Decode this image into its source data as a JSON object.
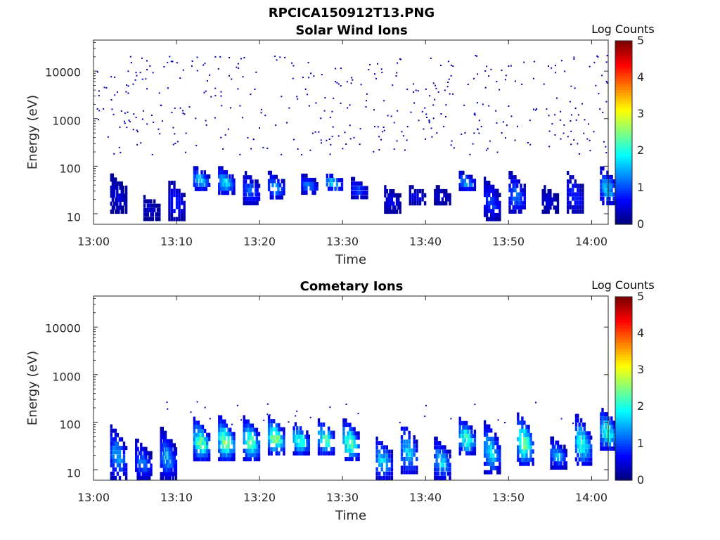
{
  "figure_title": "RPCICA150912T13.PNG",
  "colors": {
    "colormap": "jet",
    "axes": "#262626",
    "background": "#ffffff"
  },
  "chart_data": [
    {
      "type": "heatmap",
      "title": "Solar Wind Ions",
      "xlabel": "Time",
      "ylabel": "Energy (eV)",
      "x_ticks": [
        "13:00",
        "13:10",
        "13:20",
        "13:30",
        "13:40",
        "13:50",
        "14:00"
      ],
      "x_range": [
        "13:00",
        "14:02"
      ],
      "y_scale": "log",
      "y_ticks": [
        "10",
        "100",
        "1000",
        "10000"
      ],
      "y_range": [
        6,
        45000
      ],
      "colorbar": {
        "label": "Log Counts",
        "range": [
          0,
          5
        ],
        "ticks": [
          "0",
          "1",
          "2",
          "3",
          "4",
          "5"
        ]
      },
      "description_of_data": "Sparse single-count pixels between ~200 eV and ~20000 eV throughout the hour; recurring low-energy bursts (10-100 eV) at roughly 2-3 minute cadence with log counts up to ~2.",
      "bursts": [
        {
          "t": "13:02",
          "e_low": 10,
          "e_high": 70,
          "peak": 0.5
        },
        {
          "t": "13:06",
          "e_low": 7,
          "e_high": 25,
          "peak": 0.4
        },
        {
          "t": "13:09",
          "e_low": 7,
          "e_high": 60,
          "peak": 0.8
        },
        {
          "t": "13:12",
          "e_low": 30,
          "e_high": 100,
          "peak": 1.8
        },
        {
          "t": "13:15",
          "e_low": 25,
          "e_high": 100,
          "peak": 1.9
        },
        {
          "t": "13:18",
          "e_low": 15,
          "e_high": 80,
          "peak": 1.2
        },
        {
          "t": "13:21",
          "e_low": 20,
          "e_high": 80,
          "peak": 1.5
        },
        {
          "t": "13:25",
          "e_low": 25,
          "e_high": 70,
          "peak": 1.4
        },
        {
          "t": "13:28",
          "e_low": 30,
          "e_high": 70,
          "peak": 1.9
        },
        {
          "t": "13:31",
          "e_low": 20,
          "e_high": 60,
          "peak": 1.0
        },
        {
          "t": "13:35",
          "e_low": 10,
          "e_high": 40,
          "peak": 0.6
        },
        {
          "t": "13:38",
          "e_low": 15,
          "e_high": 40,
          "peak": 0.6
        },
        {
          "t": "13:41",
          "e_low": 15,
          "e_high": 40,
          "peak": 0.5
        },
        {
          "t": "13:44",
          "e_low": 30,
          "e_high": 80,
          "peak": 1.6
        },
        {
          "t": "13:47",
          "e_low": 7,
          "e_high": 60,
          "peak": 1.0
        },
        {
          "t": "13:50",
          "e_low": 10,
          "e_high": 80,
          "peak": 1.3
        },
        {
          "t": "13:54",
          "e_low": 10,
          "e_high": 40,
          "peak": 0.5
        },
        {
          "t": "13:57",
          "e_low": 10,
          "e_high": 80,
          "peak": 0.9
        },
        {
          "t": "14:01",
          "e_low": 15,
          "e_high": 100,
          "peak": 1.7
        }
      ]
    },
    {
      "type": "heatmap",
      "title": "Cometary Ions",
      "xlabel": "Time",
      "ylabel": "Energy (eV)",
      "x_ticks": [
        "13:00",
        "13:10",
        "13:20",
        "13:30",
        "13:40",
        "13:50",
        "14:00"
      ],
      "x_range": [
        "13:00",
        "14:02"
      ],
      "y_scale": "log",
      "y_ticks": [
        "10",
        "100",
        "1000",
        "10000"
      ],
      "y_range": [
        6,
        45000
      ],
      "colorbar": {
        "label": "Log Counts",
        "range": [
          0,
          5
        ],
        "ticks": [
          "0",
          "1",
          "2",
          "3",
          "4",
          "5"
        ]
      },
      "description_of_data": "Recurring bursts between ~6 eV and ~200 eV at roughly 2-3 minute cadence; peak log counts ~2.7 near 30-60 eV.",
      "bursts": [
        {
          "t": "13:02",
          "e_low": 6,
          "e_high": 90,
          "peak": 1.6
        },
        {
          "t": "13:05",
          "e_low": 6,
          "e_high": 45,
          "peak": 1.3
        },
        {
          "t": "13:08",
          "e_low": 6,
          "e_high": 80,
          "peak": 1.5
        },
        {
          "t": "13:12",
          "e_low": 15,
          "e_high": 130,
          "peak": 2.5
        },
        {
          "t": "13:15",
          "e_low": 15,
          "e_high": 140,
          "peak": 2.6
        },
        {
          "t": "13:18",
          "e_low": 15,
          "e_high": 140,
          "peak": 2.4
        },
        {
          "t": "13:21",
          "e_low": 20,
          "e_high": 140,
          "peak": 2.7
        },
        {
          "t": "13:24",
          "e_low": 20,
          "e_high": 100,
          "peak": 2.3
        },
        {
          "t": "13:27",
          "e_low": 20,
          "e_high": 120,
          "peak": 2.4
        },
        {
          "t": "13:30",
          "e_low": 15,
          "e_high": 120,
          "peak": 2.5
        },
        {
          "t": "13:34",
          "e_low": 6,
          "e_high": 50,
          "peak": 1.9
        },
        {
          "t": "13:37",
          "e_low": 8,
          "e_high": 100,
          "peak": 1.9
        },
        {
          "t": "13:41",
          "e_low": 6,
          "e_high": 50,
          "peak": 1.8
        },
        {
          "t": "13:44",
          "e_low": 20,
          "e_high": 130,
          "peak": 2.3
        },
        {
          "t": "13:47",
          "e_low": 8,
          "e_high": 110,
          "peak": 1.9
        },
        {
          "t": "13:51",
          "e_low": 12,
          "e_high": 160,
          "peak": 2.6
        },
        {
          "t": "13:55",
          "e_low": 10,
          "e_high": 50,
          "peak": 1.5
        },
        {
          "t": "13:58",
          "e_low": 12,
          "e_high": 150,
          "peak": 2.2
        },
        {
          "t": "14:01",
          "e_low": 25,
          "e_high": 200,
          "peak": 2.3
        }
      ]
    }
  ]
}
